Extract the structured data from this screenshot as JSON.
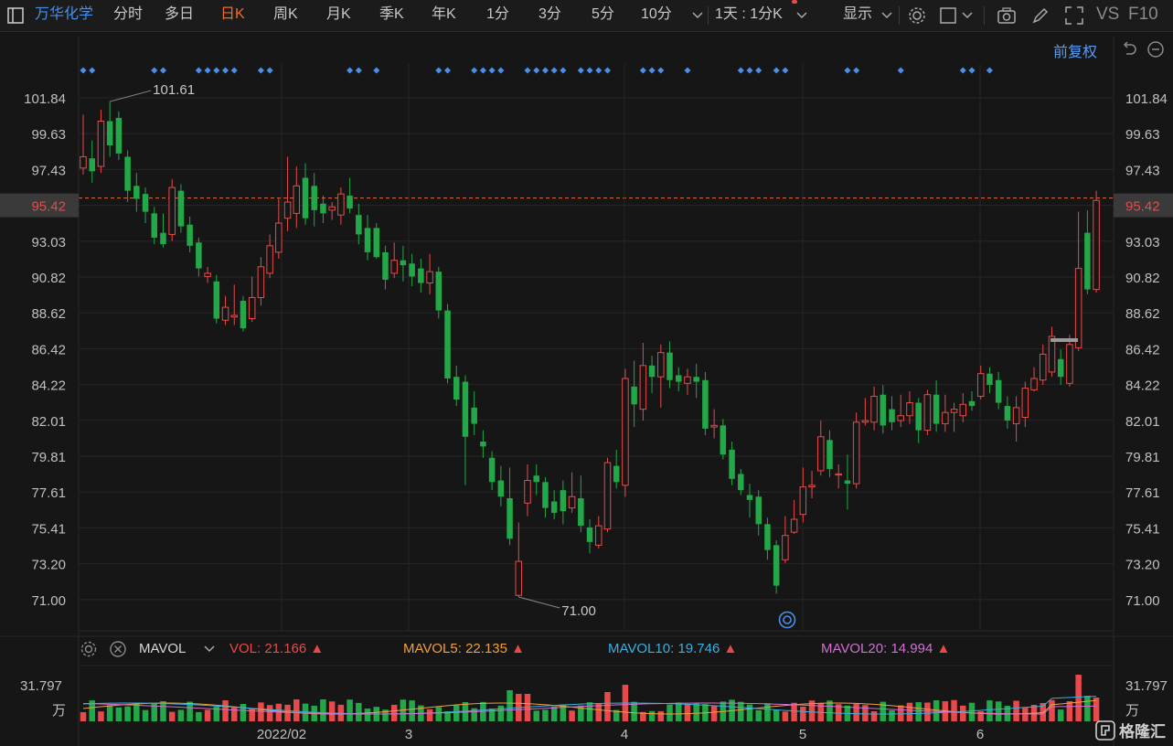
{
  "toolbar": {
    "stock_name": "万华化学",
    "periods": [
      "分时",
      "多日",
      "日K",
      "周K",
      "月K",
      "季K",
      "年K",
      "1分",
      "3分",
      "5分",
      "10分"
    ],
    "active_period": "日K",
    "interval_selector": "1天 : 1分K",
    "display_menu": "显示",
    "vs_label": "VS",
    "f10_label": "F10"
  },
  "chart": {
    "adjust_label": "前复权",
    "price_axis_left": [
      "101.84",
      "99.63",
      "97.43",
      "95.42",
      "93.03",
      "90.82",
      "88.62",
      "86.42",
      "84.22",
      "82.01",
      "79.81",
      "77.61",
      "75.41",
      "73.20",
      "71.00"
    ],
    "price_axis_right": [
      "101.84",
      "99.63",
      "97.43",
      "95.42",
      "93.03",
      "90.82",
      "88.62",
      "86.42",
      "84.22",
      "82.01",
      "79.81",
      "77.61",
      "75.41",
      "73.20",
      "71.00"
    ],
    "current_price": "95.42",
    "high_marker": "101.61",
    "low_marker": "71.00",
    "x_labels": [
      "2022/02",
      "3",
      "4",
      "5",
      "6"
    ]
  },
  "volume": {
    "indicator": "MAVOL",
    "vol_label": "VOL:",
    "vol_value": "21.166",
    "mavol5_label": "MAVOL5:",
    "mavol5_value": "22.135",
    "mavol10_label": "MAVOL10:",
    "mavol10_value": "19.746",
    "mavol20_label": "MAVOL20:",
    "mavol20_value": "14.994",
    "axis_top": "31.797",
    "axis_unit": "万",
    "axis_top_right": "31.797",
    "axis_unit_right": "万"
  },
  "colors": {
    "up": "#e84a4a",
    "down": "#22a848",
    "accent": "#f26b22",
    "link": "#4a8fe8",
    "mavol5": "#f0a040",
    "mavol10": "#3ab0e0",
    "mavol20": "#d070d0"
  },
  "watermark": "格隆汇"
}
